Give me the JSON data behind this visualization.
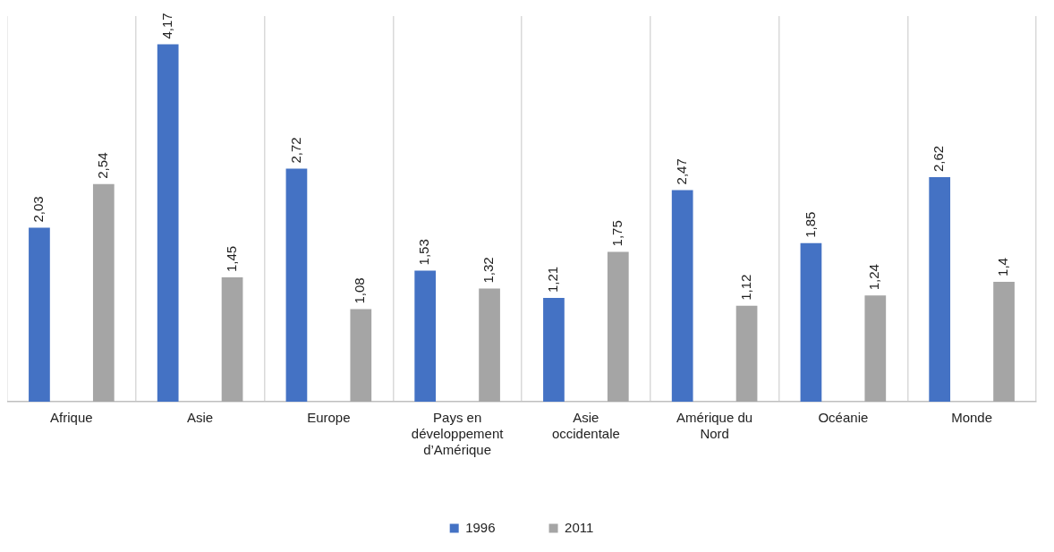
{
  "chart_data": {
    "type": "bar",
    "categories": [
      "Afrique",
      "Asie",
      "Europe",
      "Pays en développement d’Amérique",
      "Asie occidentale",
      "Amérique du Nord",
      "Océanie",
      "Monde"
    ],
    "series": [
      {
        "name": "1996",
        "color": "#4472c4",
        "values": [
          2.03,
          4.17,
          2.72,
          1.53,
          1.21,
          2.47,
          1.85,
          2.62
        ],
        "value_labels": [
          "2,03",
          "4,17",
          "2,72",
          "1,53",
          "1,21",
          "2,47",
          "1,85",
          "2,62"
        ]
      },
      {
        "name": "2011",
        "color": "#a5a5a5",
        "values": [
          2.54,
          1.45,
          1.08,
          1.32,
          1.75,
          1.12,
          1.24,
          1.4
        ],
        "value_labels": [
          "2,54",
          "1,45",
          "1,08",
          "1,32",
          "1,75",
          "1,12",
          "1,24",
          "1,4"
        ]
      }
    ],
    "grid": "x",
    "legend": "bottom"
  }
}
